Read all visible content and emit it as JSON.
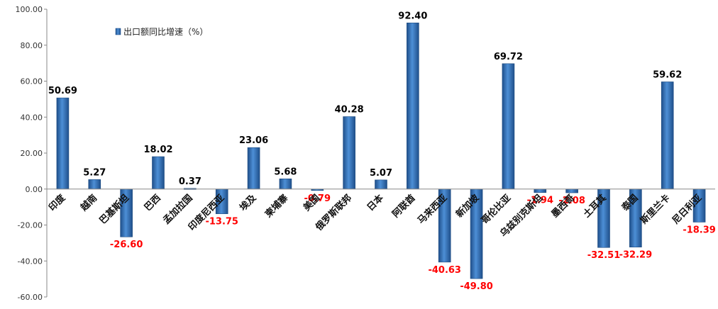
{
  "chart_data": {
    "type": "bar",
    "categories": [
      "印度",
      "越南",
      "巴基斯坦",
      "巴西",
      "孟加拉国",
      "印度尼西亚",
      "埃及",
      "柬埔寨",
      "美国",
      "俄罗斯联邦",
      "日本",
      "阿联酋",
      "马来西亚",
      "新加坡",
      "哥伦比亚",
      "乌兹别克斯坦",
      "墨西哥",
      "土耳其",
      "泰国",
      "斯里兰卡",
      "尼日利亚"
    ],
    "series": [
      {
        "name": "出口额同比增速（%）",
        "values": [
          50.69,
          5.27,
          -26.6,
          18.02,
          0.37,
          -13.75,
          23.06,
          5.68,
          -0.79,
          40.28,
          5.07,
          92.4,
          -40.63,
          -49.8,
          69.72,
          -1.94,
          -2.08,
          -32.51,
          -32.29,
          59.62,
          -18.39
        ],
        "labels": [
          "50.69",
          "5.27",
          "-26.60",
          "18.02",
          "0.37",
          "-13.75",
          "23.06",
          "5.68",
          "-0.79",
          "40.28",
          "5.07",
          "92.40",
          "-40.63",
          "-49.80",
          "69.72",
          "-1.94",
          "-2.08",
          "-32.51",
          "-32.29",
          "59.62",
          "-18.39"
        ]
      }
    ],
    "yticks": [
      "100.00",
      "80.00",
      "60.00",
      "40.00",
      "20.00",
      "0.00",
      "-20.00",
      "-40.00",
      "-60.00"
    ],
    "ylim": [
      -60,
      100
    ],
    "legend_position": "top-left",
    "grid": false,
    "colors": {
      "bar": "#3a78bd",
      "positive_label": "#000000",
      "negative_label": "#ff0000"
    }
  }
}
